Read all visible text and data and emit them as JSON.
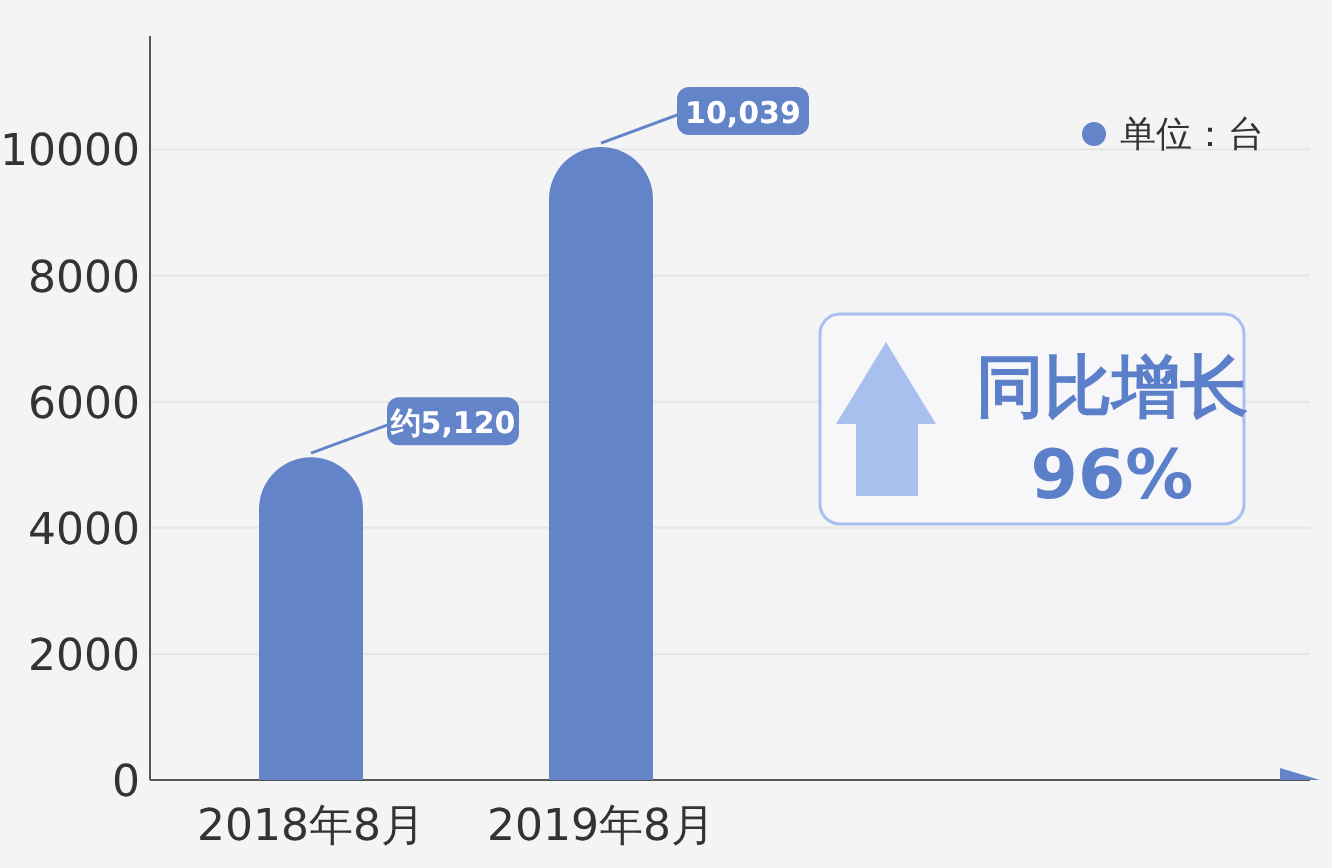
{
  "chart_data": {
    "type": "bar",
    "categories": [
      "2018年8月",
      "2019年8月",
      null,
      null
    ],
    "series": [
      {
        "name": "单位：台",
        "color": "#6384c9",
        "values": [
          5120,
          10039,
          null,
          null
        ],
        "value_labels": [
          "约5,120",
          "10,039",
          null,
          null
        ]
      }
    ],
    "ylim": [
      0,
      11800
    ],
    "yticks": [
      0,
      2000,
      4000,
      6000,
      8000,
      10000
    ],
    "grid": "y",
    "legend": "top right",
    "annotations": [
      "同比增长\n96%"
    ]
  }
}
